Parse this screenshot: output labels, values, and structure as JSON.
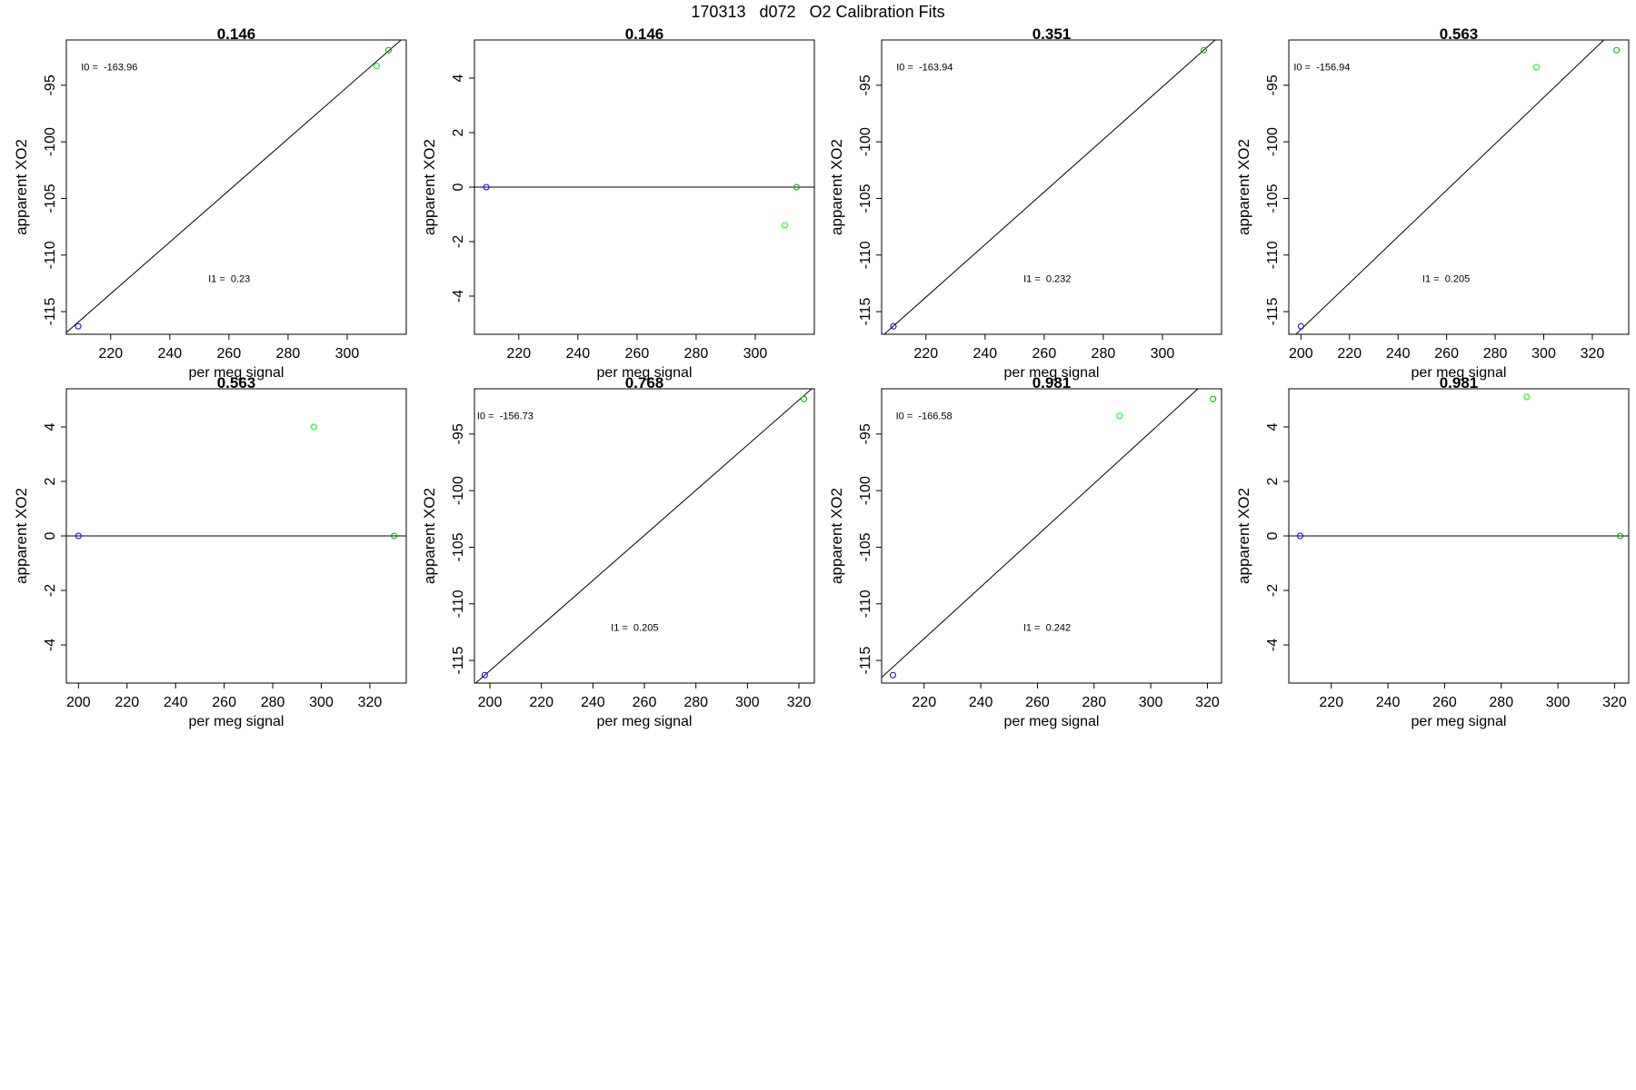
{
  "figure": {
    "title": "170313   d072   O2 Calibration Fits"
  },
  "chart_data": [
    {
      "type": "scatter",
      "title": "0.146",
      "xlabel": "per meg signal",
      "ylabel": "apparent XO2",
      "xlim": [
        205,
        320
      ],
      "ylim": [
        -117,
        -91
      ],
      "xticks": [
        220,
        240,
        260,
        280,
        300
      ],
      "yticks": [
        -115,
        -110,
        -105,
        -100,
        -95
      ],
      "points": [
        {
          "x": 209,
          "y": -116.3,
          "color": "#0000ff"
        },
        {
          "x": 310,
          "y": -93.3,
          "color": "#00ff00"
        },
        {
          "x": 314,
          "y": -91.9,
          "color": "#00aa00"
        }
      ],
      "fit_line": {
        "from": [
          203,
          -117.3
        ],
        "to": [
          320,
          -90.6
        ]
      },
      "annotations": [
        {
          "text": "I0 =  -163.96",
          "x": 210,
          "y": -93.7
        },
        {
          "text": "I1 =  0.23",
          "x": 253,
          "y": -112.4
        }
      ]
    },
    {
      "type": "scatter",
      "title": "0.146",
      "xlabel": "per meg signal",
      "ylabel": "apparent XO2",
      "xlim": [
        205,
        320
      ],
      "ylim": [
        -5.4,
        5.4
      ],
      "xticks": [
        220,
        240,
        260,
        280,
        300
      ],
      "yticks": [
        -4,
        -2,
        0,
        2,
        4
      ],
      "points": [
        {
          "x": 209,
          "y": 0,
          "color": "#0000ff"
        },
        {
          "x": 310,
          "y": -1.4,
          "color": "#00ff00"
        },
        {
          "x": 314,
          "y": 0,
          "color": "#00aa00"
        }
      ],
      "fit_line": {
        "from": [
          205,
          0
        ],
        "to": [
          320,
          0
        ]
      },
      "annotations": []
    },
    {
      "type": "scatter",
      "title": "0.351",
      "xlabel": "per meg signal",
      "ylabel": "apparent XO2",
      "xlim": [
        205,
        320
      ],
      "ylim": [
        -117,
        -91
      ],
      "xticks": [
        220,
        240,
        260,
        280,
        300
      ],
      "yticks": [
        -115,
        -110,
        -105,
        -100,
        -95
      ],
      "points": [
        {
          "x": 209,
          "y": -116.3,
          "color": "#0000ff"
        },
        {
          "x": 314,
          "y": -91.9,
          "color": "#00aa00"
        }
      ],
      "fit_line": {
        "from": [
          205,
          -117.2
        ],
        "to": [
          320,
          -90.5
        ]
      },
      "annotations": [
        {
          "text": "I0 =  -163.94",
          "x": 210,
          "y": -93.7
        },
        {
          "text": "I1 =  0.232",
          "x": 253,
          "y": -112.4
        }
      ]
    },
    {
      "type": "scatter",
      "title": "0.563",
      "xlabel": "per meg signal",
      "ylabel": "apparent XO2",
      "xlim": [
        195,
        335
      ],
      "ylim": [
        -117,
        -91
      ],
      "xticks": [
        200,
        220,
        240,
        260,
        280,
        300,
        320
      ],
      "yticks": [
        -115,
        -110,
        -105,
        -100,
        -95
      ],
      "points": [
        {
          "x": 200,
          "y": -116.3,
          "color": "#0000ff"
        },
        {
          "x": 297,
          "y": -93.4,
          "color": "#00ff00"
        },
        {
          "x": 330,
          "y": -91.9,
          "color": "#00aa00"
        }
      ],
      "fit_line": {
        "from": [
          195,
          -117.6
        ],
        "to": [
          335,
          -88.9
        ]
      },
      "annotations": [
        {
          "text": "I0 =  -156.94",
          "x": 197,
          "y": -93.7
        },
        {
          "text": "I1 =  0.205",
          "x": 250,
          "y": -112.4
        }
      ]
    },
    {
      "type": "scatter",
      "title": "0.563",
      "xlabel": "per meg signal",
      "ylabel": "apparent XO2",
      "xlim": [
        195,
        335
      ],
      "ylim": [
        -5.4,
        5.4
      ],
      "xticks": [
        200,
        220,
        240,
        260,
        280,
        300,
        320
      ],
      "yticks": [
        -4,
        -2,
        0,
        2,
        4
      ],
      "points": [
        {
          "x": 200,
          "y": 0,
          "color": "#0000ff"
        },
        {
          "x": 297,
          "y": 4.0,
          "color": "#00ff00"
        },
        {
          "x": 330,
          "y": 0,
          "color": "#00aa00"
        }
      ],
      "fit_line": {
        "from": [
          195,
          0
        ],
        "to": [
          335,
          0
        ]
      },
      "annotations": []
    },
    {
      "type": "scatter",
      "title": "0.768",
      "xlabel": "per meg signal",
      "ylabel": "apparent XO2",
      "xlim": [
        194,
        326
      ],
      "ylim": [
        -117,
        -91
      ],
      "xticks": [
        200,
        220,
        240,
        260,
        280,
        300,
        320
      ],
      "yticks": [
        -115,
        -110,
        -105,
        -100,
        -95
      ],
      "points": [
        {
          "x": 198,
          "y": -116.3,
          "color": "#0000ff"
        },
        {
          "x": 322,
          "y": -91.9,
          "color": "#00aa00"
        }
      ],
      "fit_line": {
        "from": [
          194,
          -117.1
        ],
        "to": [
          326,
          -90.8
        ]
      },
      "annotations": [
        {
          "text": "I0 =  -156.73",
          "x": 195,
          "y": -93.7
        },
        {
          "text": "I1 =  0.205",
          "x": 247,
          "y": -112.4
        }
      ]
    },
    {
      "type": "scatter",
      "title": "0.981",
      "xlabel": "per meg signal",
      "ylabel": "apparent XO2",
      "xlim": [
        205,
        325
      ],
      "ylim": [
        -117,
        -91
      ],
      "xticks": [
        220,
        240,
        260,
        280,
        300,
        320
      ],
      "yticks": [
        -115,
        -110,
        -105,
        -100,
        -95
      ],
      "points": [
        {
          "x": 209,
          "y": -116.3,
          "color": "#0000ff"
        },
        {
          "x": 289,
          "y": -93.4,
          "color": "#00ff00"
        },
        {
          "x": 322,
          "y": -91.9,
          "color": "#00aa00"
        }
      ],
      "fit_line": {
        "from": [
          205,
          -116.5
        ],
        "to": [
          325,
          -89.1
        ]
      },
      "annotations": [
        {
          "text": "I0 =  -166.58",
          "x": 210,
          "y": -93.7
        },
        {
          "text": "I1 =  0.242",
          "x": 255,
          "y": -112.4
        }
      ]
    },
    {
      "type": "scatter",
      "title": "0.981",
      "xlabel": "per meg signal",
      "ylabel": "apparent XO2",
      "xlim": [
        205,
        325
      ],
      "ylim": [
        -5.4,
        5.4
      ],
      "xticks": [
        220,
        240,
        260,
        280,
        300,
        320
      ],
      "yticks": [
        -4,
        -2,
        0,
        2,
        4
      ],
      "points": [
        {
          "x": 209,
          "y": 0,
          "color": "#0000ff"
        },
        {
          "x": 289,
          "y": 5.1,
          "color": "#00ff00"
        },
        {
          "x": 322,
          "y": 0,
          "color": "#00aa00"
        }
      ],
      "fit_line": {
        "from": [
          205,
          0
        ],
        "to": [
          325,
          0
        ]
      },
      "annotations": []
    }
  ]
}
